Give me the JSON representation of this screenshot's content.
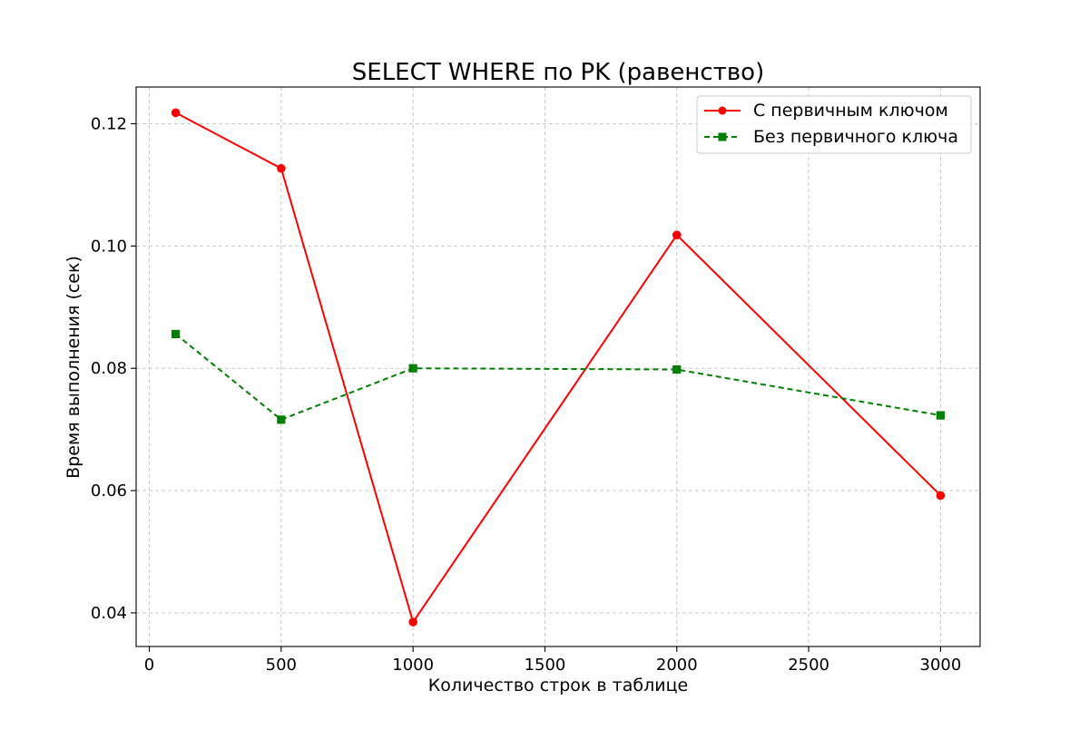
{
  "chart_data": {
    "type": "line",
    "title": "SELECT WHERE по PK (равенство)",
    "xlabel": "Количество строк в таблице",
    "ylabel": "Время выполнения (сек)",
    "xlim": [
      -50,
      3150
    ],
    "ylim": [
      0.0345,
      0.126
    ],
    "xticks": [
      0,
      500,
      1000,
      1500,
      2000,
      2500,
      3000
    ],
    "xtick_labels": [
      "0",
      "500",
      "1000",
      "1500",
      "2000",
      "2500",
      "3000"
    ],
    "yticks": [
      0.04,
      0.06,
      0.08,
      0.1,
      0.12
    ],
    "ytick_labels": [
      "0.04",
      "0.06",
      "0.08",
      "0.10",
      "0.12"
    ],
    "grid": true,
    "legend_position": "top-right",
    "x": [
      100,
      500,
      1000,
      2000,
      3000
    ],
    "series": [
      {
        "name": "С первичным ключом",
        "values": [
          0.1218,
          0.1127,
          0.0385,
          0.1018,
          0.0592
        ],
        "color": "#ff0000",
        "marker": "circle",
        "linestyle": "solid"
      },
      {
        "name": "Без первичного ключа",
        "values": [
          0.0856,
          0.0716,
          0.08,
          0.0798,
          0.0723
        ],
        "color": "#008000",
        "marker": "square",
        "linestyle": "dashed"
      }
    ]
  }
}
